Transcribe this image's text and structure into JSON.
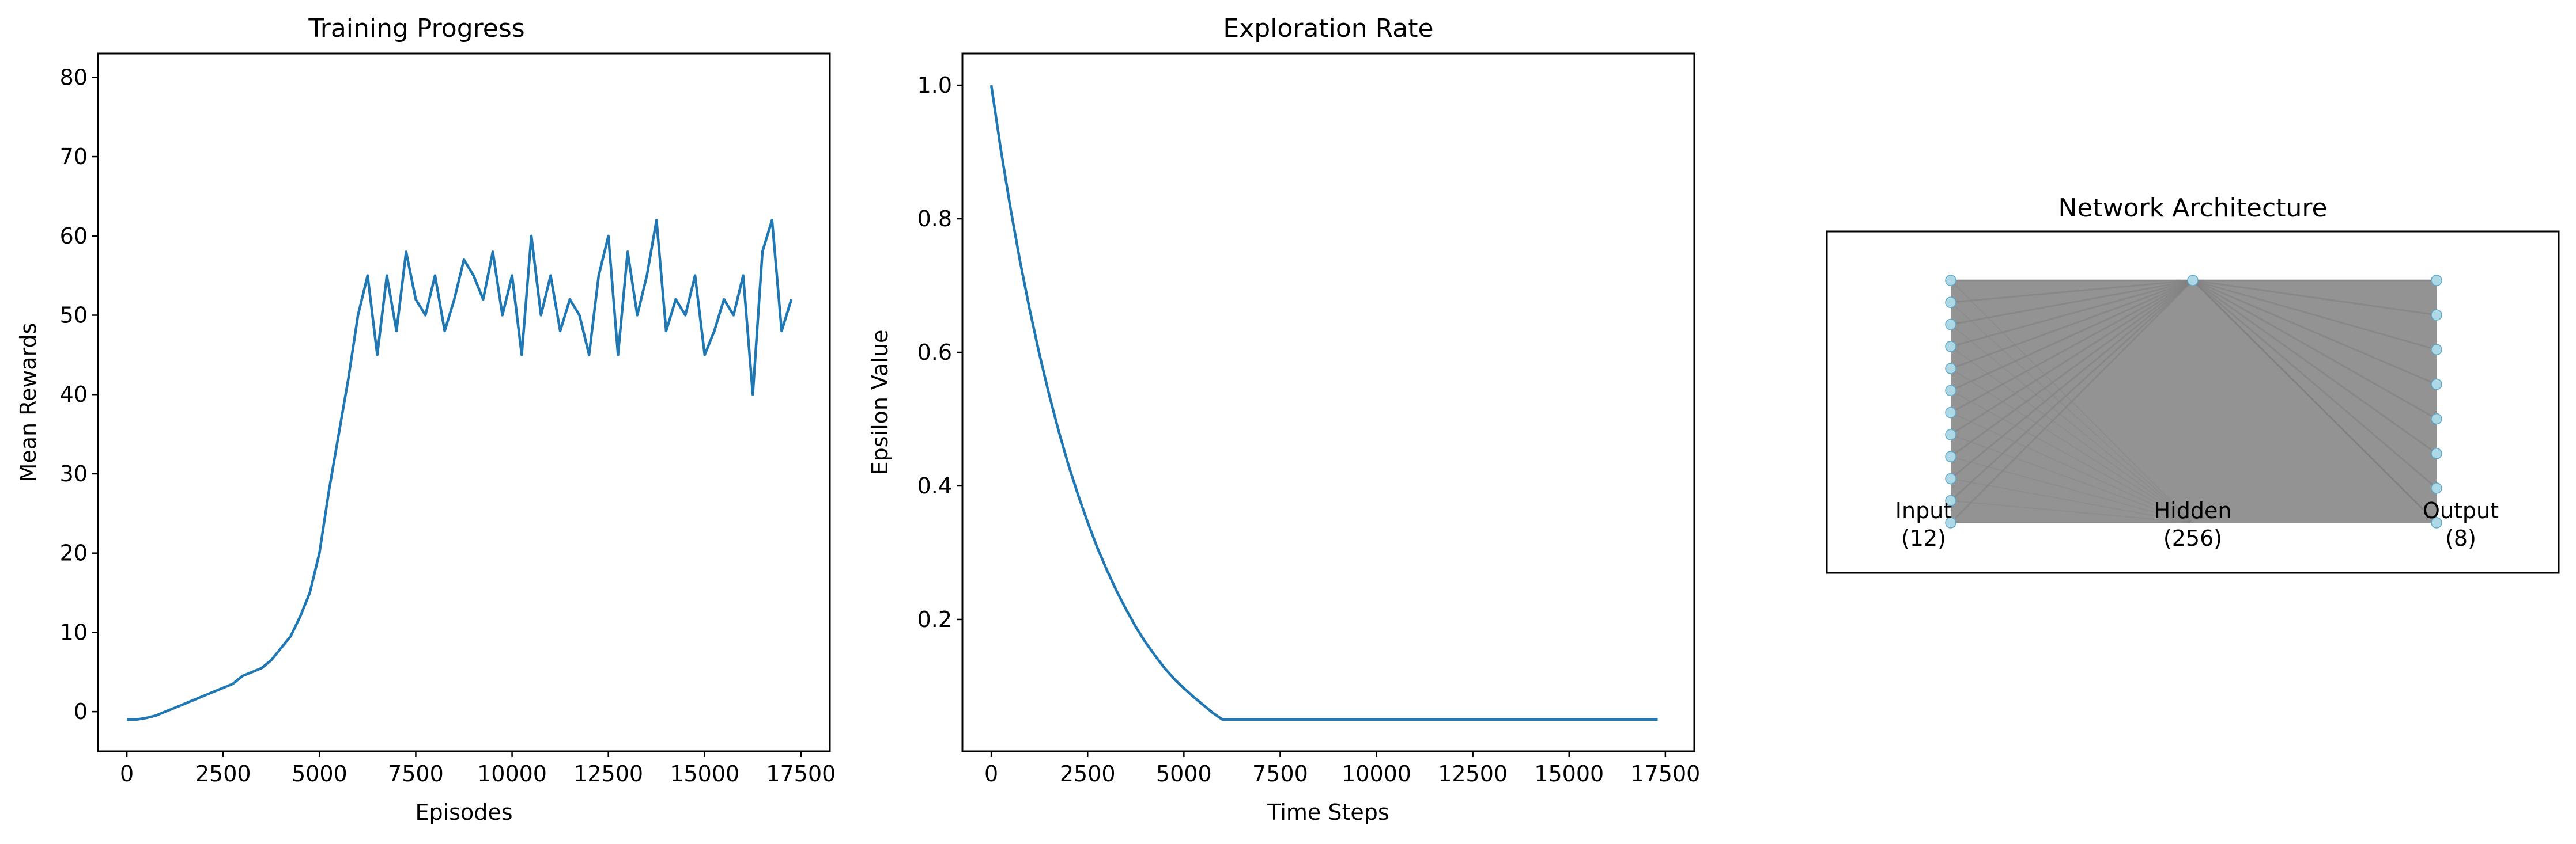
{
  "chart_data": [
    {
      "type": "line",
      "title": "Training Progress",
      "xlabel": "Episodes",
      "ylabel": "Mean Rewards",
      "xlim": [
        -750,
        18250
      ],
      "ylim": [
        -5,
        83
      ],
      "xticks": [
        0,
        2500,
        5000,
        7500,
        10000,
        12500,
        15000,
        17500
      ],
      "yticks": [
        0,
        10,
        20,
        30,
        40,
        50,
        60,
        70,
        80
      ],
      "grid": false,
      "color": "#1f77b4",
      "series": [
        {
          "x": [
            0,
            250,
            500,
            750,
            1000,
            1250,
            1500,
            1750,
            2000,
            2250,
            2500,
            2750,
            3000,
            3250,
            3500,
            3750,
            4000,
            4250,
            4500,
            4750,
            5000,
            5250,
            5500,
            5750,
            6000,
            6250,
            6500,
            6750,
            7000,
            7250,
            7500,
            7750,
            8000,
            8250,
            8500,
            8750,
            9000,
            9250,
            9500,
            9750,
            10000,
            10250,
            10500,
            10750,
            11000,
            11250,
            11500,
            11750,
            12000,
            12250,
            12500,
            12750,
            13000,
            13250,
            13500,
            13750,
            14000,
            14250,
            14500,
            14750,
            15000,
            15250,
            15500,
            15750,
            16000,
            16250,
            16500,
            16750,
            17000,
            17250
          ],
          "y": [
            -1,
            -1,
            -0.8,
            -0.5,
            0,
            0.5,
            1,
            1.5,
            2,
            2.5,
            3,
            3.5,
            4.5,
            5,
            5.5,
            6.5,
            8,
            9.5,
            12,
            15,
            20,
            28,
            35,
            42,
            50,
            55,
            45,
            55,
            48,
            58,
            52,
            50,
            55,
            48,
            52,
            57,
            55,
            52,
            58,
            50,
            55,
            45,
            60,
            50,
            55,
            48,
            52,
            50,
            45,
            55,
            60,
            45,
            58,
            50,
            55,
            62,
            48,
            52,
            50,
            55,
            45,
            48,
            52,
            50,
            55,
            40,
            58,
            62,
            48,
            52
          ]
        }
      ]
    },
    {
      "type": "line",
      "title": "Exploration Rate",
      "xlabel": "Time Steps",
      "ylabel": "Epsilon Value",
      "xlim": [
        -750,
        18250
      ],
      "ylim": [
        0.0025,
        1.0475
      ],
      "xticks": [
        0,
        2500,
        5000,
        7500,
        10000,
        12500,
        15000,
        17500
      ],
      "yticks": [
        0.2,
        0.4,
        0.6,
        0.8,
        1.0
      ],
      "grid": false,
      "color": "#1f77b4",
      "series": [
        {
          "x": [
            0,
            250,
            500,
            750,
            1000,
            1250,
            1500,
            1750,
            2000,
            2250,
            2500,
            2750,
            3000,
            3250,
            3500,
            3750,
            4000,
            4250,
            4500,
            4750,
            5000,
            5250,
            5500,
            5750,
            6000,
            8000,
            10000,
            12000,
            14000,
            16000,
            17300
          ],
          "y": [
            1.0,
            0.903,
            0.815,
            0.735,
            0.663,
            0.597,
            0.537,
            0.482,
            0.432,
            0.387,
            0.346,
            0.308,
            0.274,
            0.243,
            0.215,
            0.189,
            0.166,
            0.146,
            0.127,
            0.111,
            0.097,
            0.084,
            0.072,
            0.06,
            0.05,
            0.05,
            0.05,
            0.05,
            0.05,
            0.05,
            0.05
          ]
        }
      ]
    }
  ],
  "network": {
    "title": "Network Architecture",
    "layers": [
      {
        "name": "Input",
        "count_label": "(12)",
        "nodes": 12
      },
      {
        "name": "Hidden",
        "count_label": "(256)",
        "nodes": 1
      },
      {
        "name": "Output",
        "count_label": "(8)",
        "nodes": 8
      }
    ],
    "node_color": "#add8e6",
    "edge_color": "#808080"
  }
}
